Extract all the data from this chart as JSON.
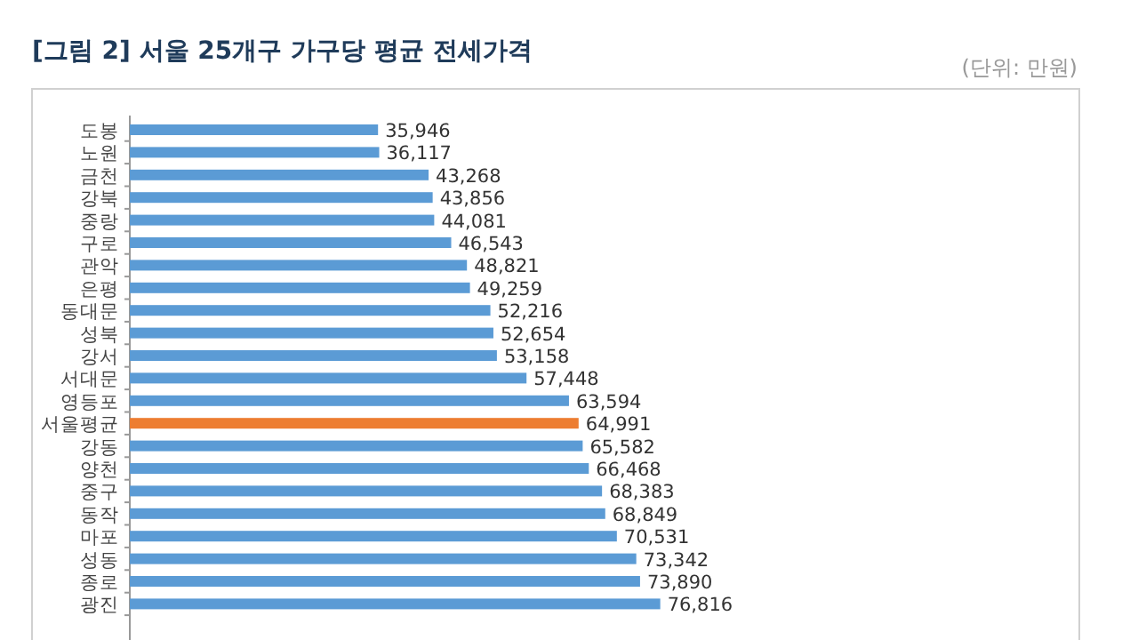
{
  "chart_data": {
    "type": "bar",
    "orientation": "horizontal",
    "title": "[그림 2] 서울 25개구 가구당 평균 전세가격",
    "annotations": [
      "(단위: 만원)"
    ],
    "categories": [
      "도봉",
      "노원",
      "금천",
      "강북",
      "중랑",
      "구로",
      "관악",
      "은평",
      "동대문",
      "성북",
      "강서",
      "서대문",
      "영등포",
      "서울평균",
      "강동",
      "양천",
      "중구",
      "동작",
      "마포",
      "성동",
      "종로",
      "광진"
    ],
    "values": [
      35946,
      36117,
      43268,
      43856,
      44081,
      46543,
      48821,
      49259,
      52216,
      52654,
      53158,
      57448,
      63594,
      64991,
      65582,
      66468,
      68383,
      68849,
      70531,
      73342,
      73890,
      76816
    ],
    "colors": [
      "#5b9bd5",
      "#5b9bd5",
      "#5b9bd5",
      "#5b9bd5",
      "#5b9bd5",
      "#5b9bd5",
      "#5b9bd5",
      "#5b9bd5",
      "#5b9bd5",
      "#5b9bd5",
      "#5b9bd5",
      "#5b9bd5",
      "#5b9bd5",
      "#ed7d31",
      "#5b9bd5",
      "#5b9bd5",
      "#5b9bd5",
      "#5b9bd5",
      "#5b9bd5",
      "#5b9bd5",
      "#5b9bd5",
      "#5b9bd5"
    ],
    "value_labels": [
      "35,946",
      "36,117",
      "43,268",
      "43,856",
      "44,081",
      "46,543",
      "48,821",
      "49,259",
      "52,216",
      "52,654",
      "53,158",
      "57,448",
      "63,594",
      "64,991",
      "65,582",
      "66,468",
      "68,383",
      "68,849",
      "70,531",
      "73,342",
      "73,890",
      "76,816"
    ]
  }
}
